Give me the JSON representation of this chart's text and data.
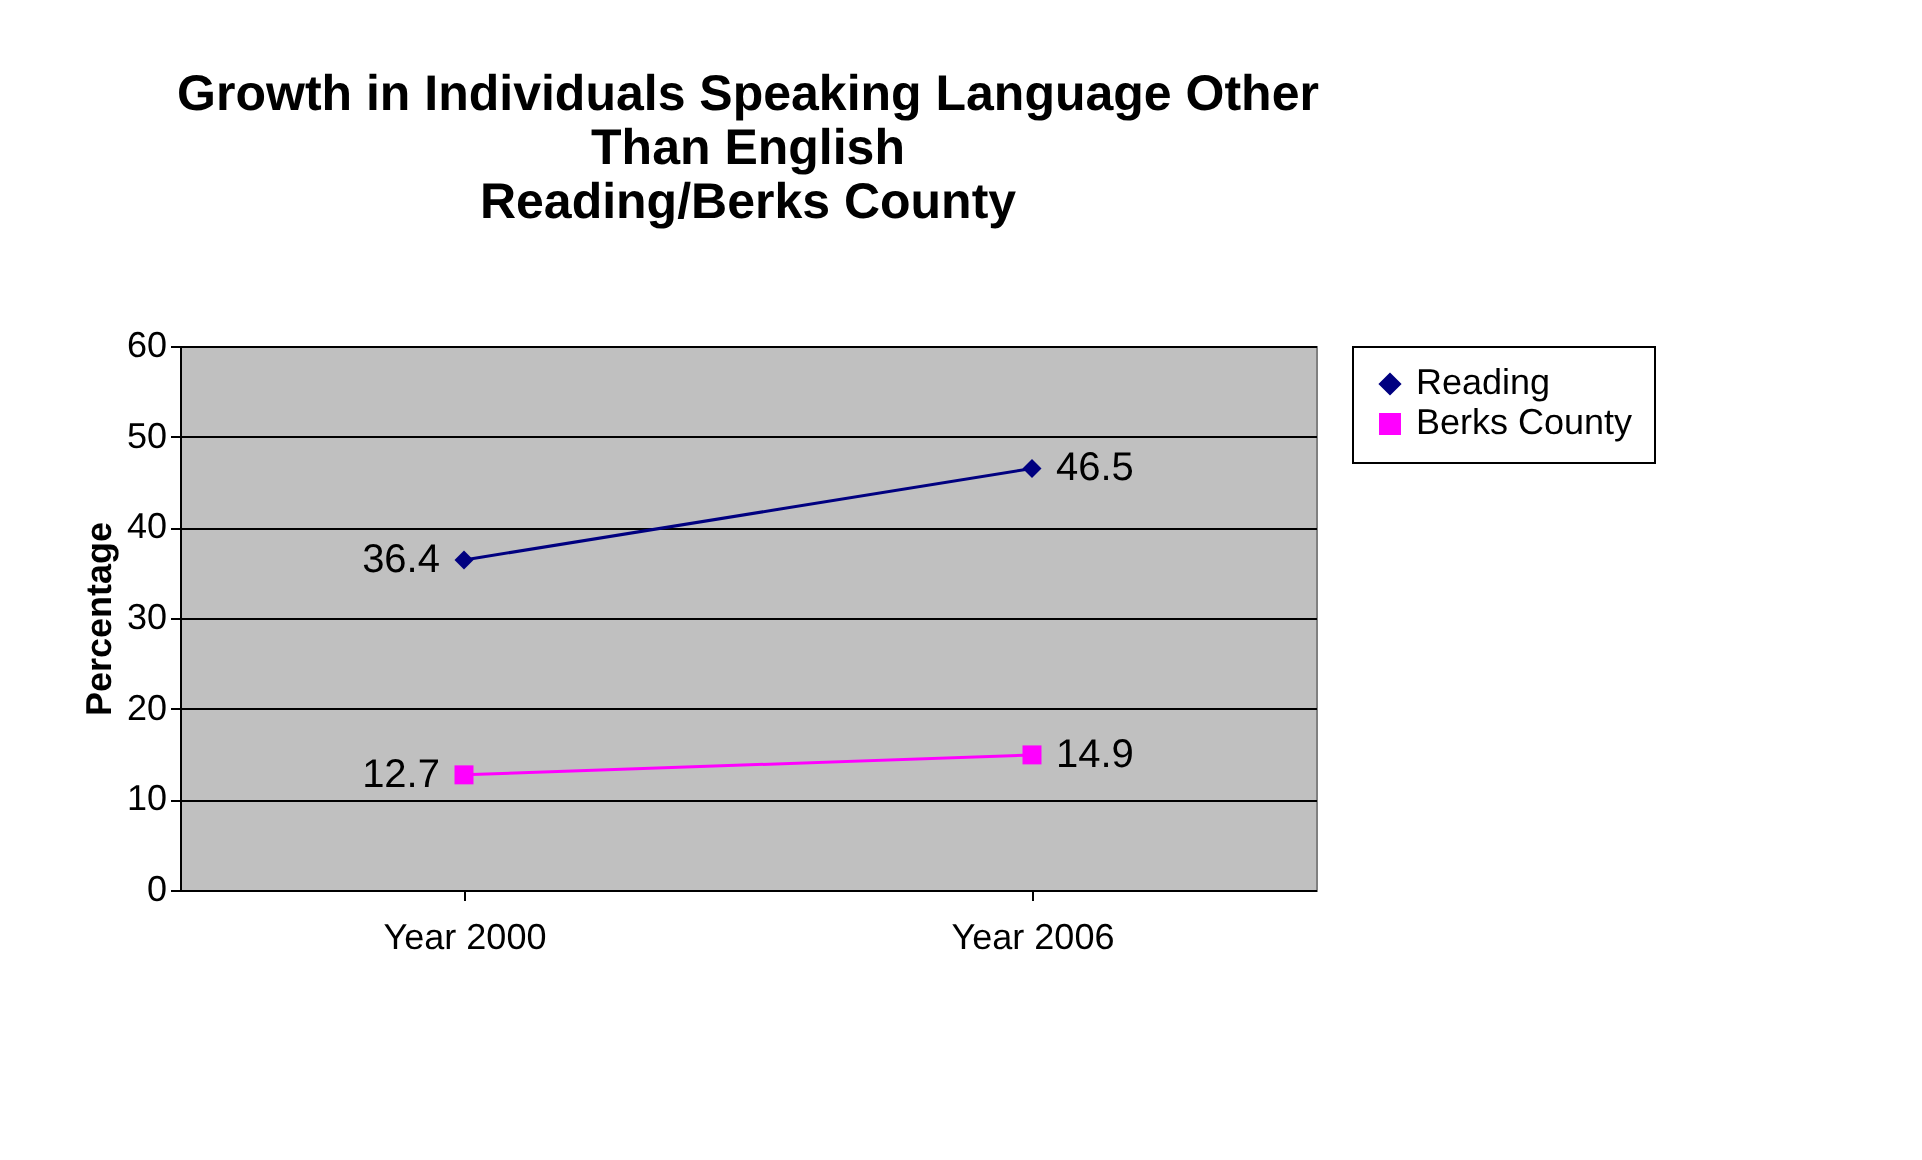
{
  "chart_data": {
    "type": "line",
    "title": "Growth in Individuals Speaking Language Other\nThan English\nReading/Berks County",
    "ylabel": "Percentage",
    "categories": [
      "Year 2000",
      "Year 2006"
    ],
    "series": [
      {
        "name": "Reading",
        "color": "#000080",
        "marker": "diamond",
        "values": [
          36.4,
          46.5
        ]
      },
      {
        "name": "Berks County",
        "color": "#ff00ff",
        "marker": "square",
        "values": [
          12.7,
          14.9
        ]
      }
    ],
    "ylim": [
      0,
      60
    ],
    "yticks": [
      0,
      10,
      20,
      30,
      40,
      50,
      60
    ],
    "grid": "y",
    "legend": "right",
    "data_labels": true
  }
}
